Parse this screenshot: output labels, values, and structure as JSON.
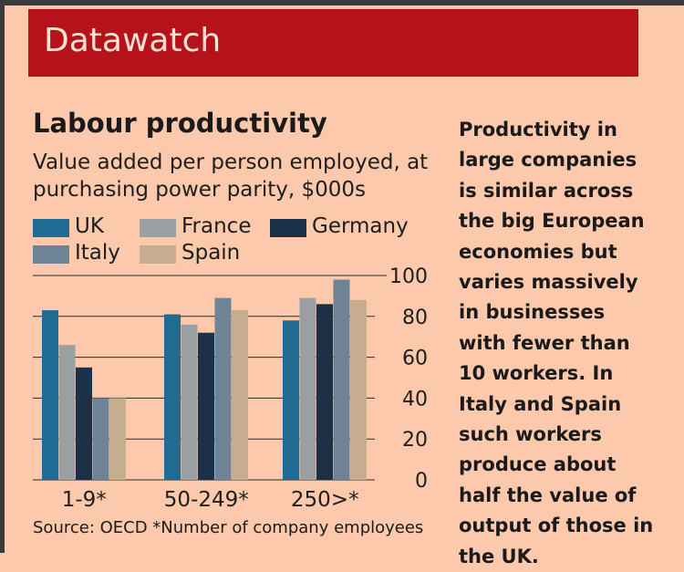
{
  "banner": {
    "label": "Datawatch"
  },
  "chart_data": {
    "type": "bar",
    "title": "Labour productivity",
    "subtitle": "Value added per person employed, at purchasing power parity, $000s",
    "categories": [
      "1-9*",
      "50-249*",
      "250>*"
    ],
    "series": [
      {
        "name": "UK",
        "color": "#1f6b93",
        "values": [
          83,
          81,
          78
        ]
      },
      {
        "name": "France",
        "color": "#9aa0a2",
        "values": [
          66,
          76,
          89
        ]
      },
      {
        "name": "Germany",
        "color": "#1c3147",
        "values": [
          55,
          72,
          86
        ]
      },
      {
        "name": "Italy",
        "color": "#6e8396",
        "values": [
          40,
          89,
          98
        ]
      },
      {
        "name": "Spain",
        "color": "#c6ad8f",
        "values": [
          40,
          83,
          88
        ]
      }
    ],
    "ylim": [
      0,
      100
    ],
    "yticks": [
      0,
      20,
      40,
      60,
      80,
      100
    ],
    "grid": true,
    "yaxis_position": "right",
    "legend_position": "top"
  },
  "note": "Productivity in large companies is similar across the big European economies but varies massively in businesses with fewer than 10 workers. In Italy and Spain such workers produce about half the value of output of those in the UK.",
  "footnote": "Source: OECD  *Number of company employees"
}
